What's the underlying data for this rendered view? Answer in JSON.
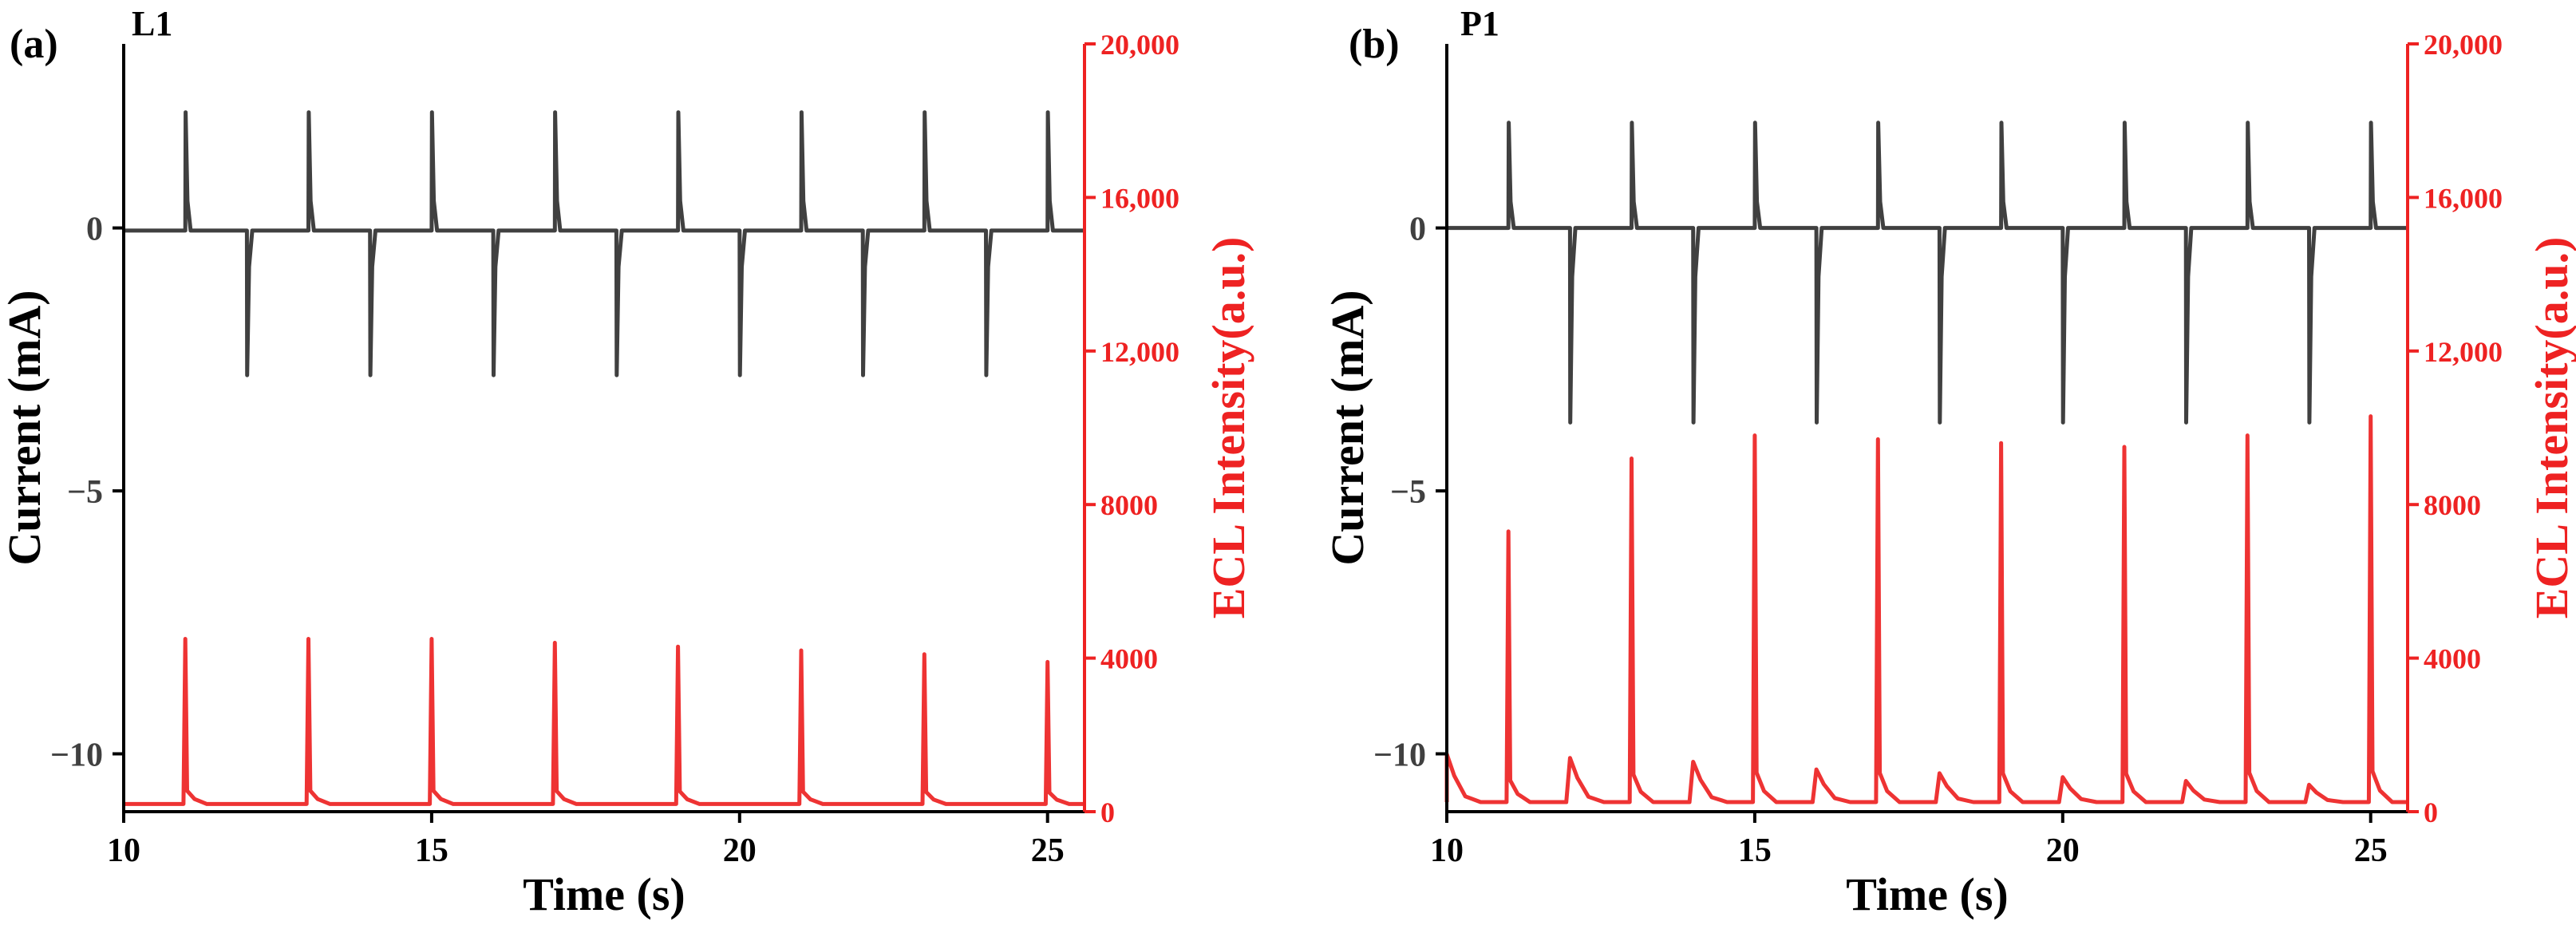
{
  "colors": {
    "current": "#404040",
    "ecl": "#ee3333",
    "axis": "#000000",
    "ecl_axis": "#ee2222"
  },
  "chart_data": [
    {
      "type": "line",
      "panel_label": "(a)",
      "title": "L1",
      "xlabel": "Time (s)",
      "ylabel": "Current (mA)",
      "y2label": "ECL Intensity(a.u.)",
      "xlim": [
        10,
        25.6
      ],
      "ylim": [
        -11.1,
        3.5
      ],
      "y2lim": [
        0,
        20000
      ],
      "xticks": [
        10,
        15,
        20,
        25
      ],
      "yticks": [
        0,
        -5,
        -10
      ],
      "y2ticks": [
        0,
        4000,
        8000,
        12000,
        16000,
        20000
      ],
      "xtick_labels": [
        "10",
        "15",
        "20",
        "25"
      ],
      "ytick_labels": [
        "0",
        "−5",
        "−10"
      ],
      "y2tick_labels": [
        "0",
        "4000",
        "8000",
        "12,000",
        "16,000",
        "20,000"
      ],
      "series": [
        {
          "name": "Current",
          "axis": "left",
          "baseline": -0.05,
          "positive_pulses": {
            "times": [
              11,
              13,
              15,
              17,
              19,
              21,
              23,
              25
            ],
            "peak": 2.2
          },
          "negative_pulses": {
            "times": [
              12,
              14,
              16,
              18,
              20,
              22,
              24
            ],
            "peak": -2.8
          }
        },
        {
          "name": "ECL",
          "axis": "right",
          "baseline": 200,
          "peaks": {
            "times": [
              11,
              13,
              15,
              17,
              19,
              21,
              23,
              25
            ],
            "values": [
              4500,
              4500,
              4500,
              4400,
              4300,
              4200,
              4100,
              3900
            ]
          },
          "minor_peaks": {
            "times": [],
            "values": []
          }
        }
      ]
    },
    {
      "type": "line",
      "panel_label": "(b)",
      "title": "P1",
      "xlabel": "Time (s)",
      "ylabel": "Current (mA)",
      "y2label": "ECL Intensity(a.u.)",
      "xlim": [
        10,
        25.6
      ],
      "ylim": [
        -11.1,
        3.5
      ],
      "y2lim": [
        0,
        20000
      ],
      "xticks": [
        10,
        15,
        20,
        25
      ],
      "yticks": [
        0,
        -5,
        -10
      ],
      "y2ticks": [
        0,
        4000,
        8000,
        12000,
        16000,
        20000
      ],
      "xtick_labels": [
        "10",
        "15",
        "20",
        "25"
      ],
      "ytick_labels": [
        "0",
        "−5",
        "−10"
      ],
      "y2tick_labels": [
        "0",
        "4000",
        "8000",
        "12,000",
        "16,000",
        "20,000"
      ],
      "series": [
        {
          "name": "Current",
          "axis": "left",
          "baseline": 0,
          "positive_pulses": {
            "times": [
              11,
              13,
              15,
              17,
              19,
              21,
              23,
              25
            ],
            "peak": 2.0
          },
          "negative_pulses": {
            "times": [
              12,
              14,
              16,
              18,
              20,
              22,
              24
            ],
            "peak": -3.7
          }
        },
        {
          "name": "ECL",
          "axis": "right",
          "baseline": 250,
          "peaks": {
            "times": [
              11,
              13,
              15,
              17,
              19,
              21,
              23,
              25
            ],
            "values": [
              7300,
              9200,
              9800,
              9700,
              9600,
              9500,
              9800,
              10300
            ]
          },
          "minor_peaks": {
            "times": [
              10,
              12,
              14,
              16,
              18,
              20,
              22,
              24
            ],
            "values": [
              1500,
              1400,
              1300,
              1100,
              1000,
              900,
              800,
              700
            ]
          }
        }
      ]
    }
  ]
}
